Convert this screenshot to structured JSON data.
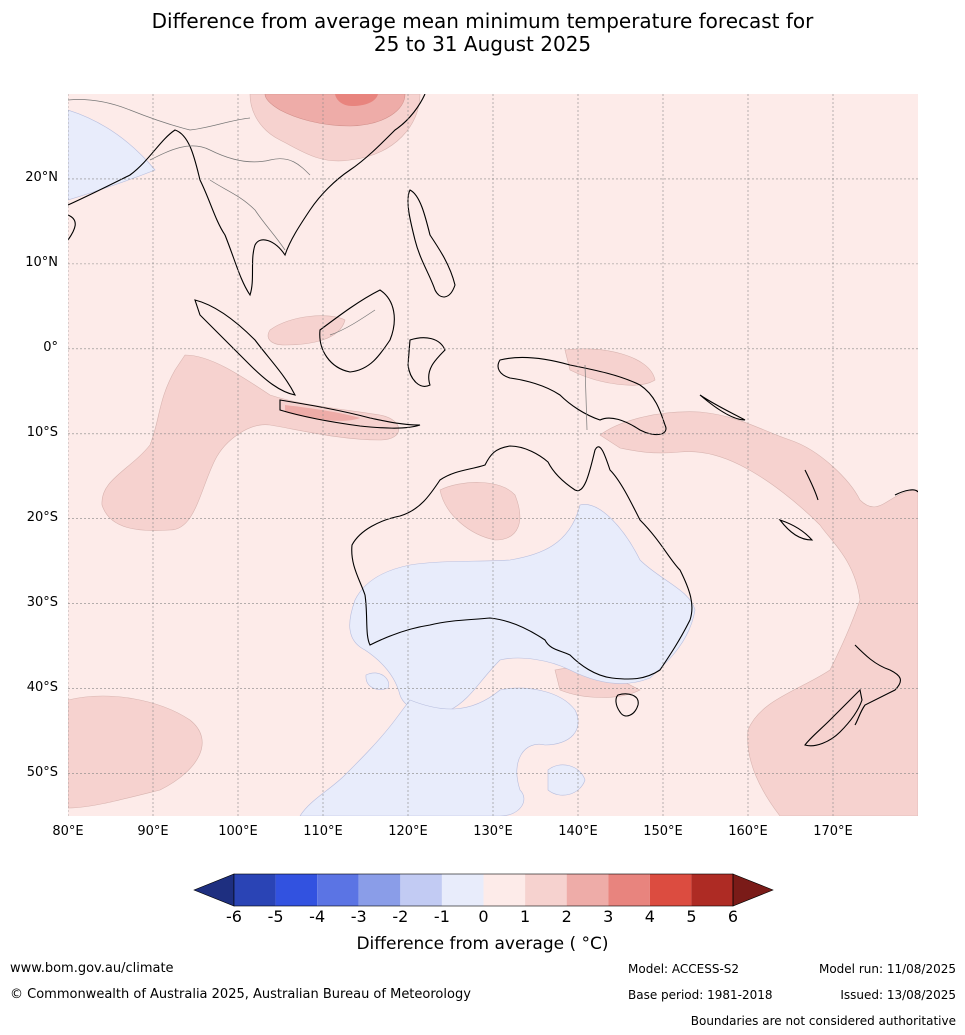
{
  "title": {
    "line1": "Difference from average mean minimum temperature forecast for",
    "line2": "25 to 31 August 2025"
  },
  "map": {
    "lat_labels": [
      "20°N",
      "10°N",
      "0°",
      "10°S",
      "20°S",
      "30°S",
      "40°S",
      "50°S"
    ],
    "lat_values": [
      20,
      10,
      0,
      -10,
      -20,
      -30,
      -40,
      -50
    ],
    "lon_labels": [
      "80°E",
      "90°E",
      "100°E",
      "110°E",
      "120°E",
      "130°E",
      "140°E",
      "150°E",
      "160°E",
      "170°E"
    ],
    "lon_values": [
      80,
      90,
      100,
      110,
      120,
      130,
      140,
      150,
      160,
      170
    ],
    "extent": {
      "lon": [
        80,
        180
      ],
      "lat": [
        -55,
        30
      ]
    },
    "grid": true
  },
  "colorbar": {
    "labels": [
      "-6",
      "-5",
      "-4",
      "-3",
      "-2",
      "-1",
      "0",
      "1",
      "2",
      "3",
      "4",
      "5",
      "6"
    ],
    "colors": [
      "#1e2f80",
      "#2a44b5",
      "#3252e0",
      "#5b74e4",
      "#8a9de8",
      "#c2cbf3",
      "#e8ecfb",
      "#fdebe9",
      "#f6d2cf",
      "#eeaca8",
      "#e8847e",
      "#dc4c40",
      "#ae2b24",
      "#7a1b18"
    ],
    "title": "Difference from average ( °C)"
  },
  "footer": {
    "website": "www.bom.gov.au/climate",
    "copyright": "© Commonwealth of Australia 2025, Australian Bureau of Meteorology",
    "model": "Model: ACCESS-S2",
    "base_period": "Base period: 1981-2018",
    "model_run": "Model run: 11/08/2025",
    "issued": "Issued: 13/08/2025",
    "boundaries": "Boundaries are not considered authoritative"
  }
}
